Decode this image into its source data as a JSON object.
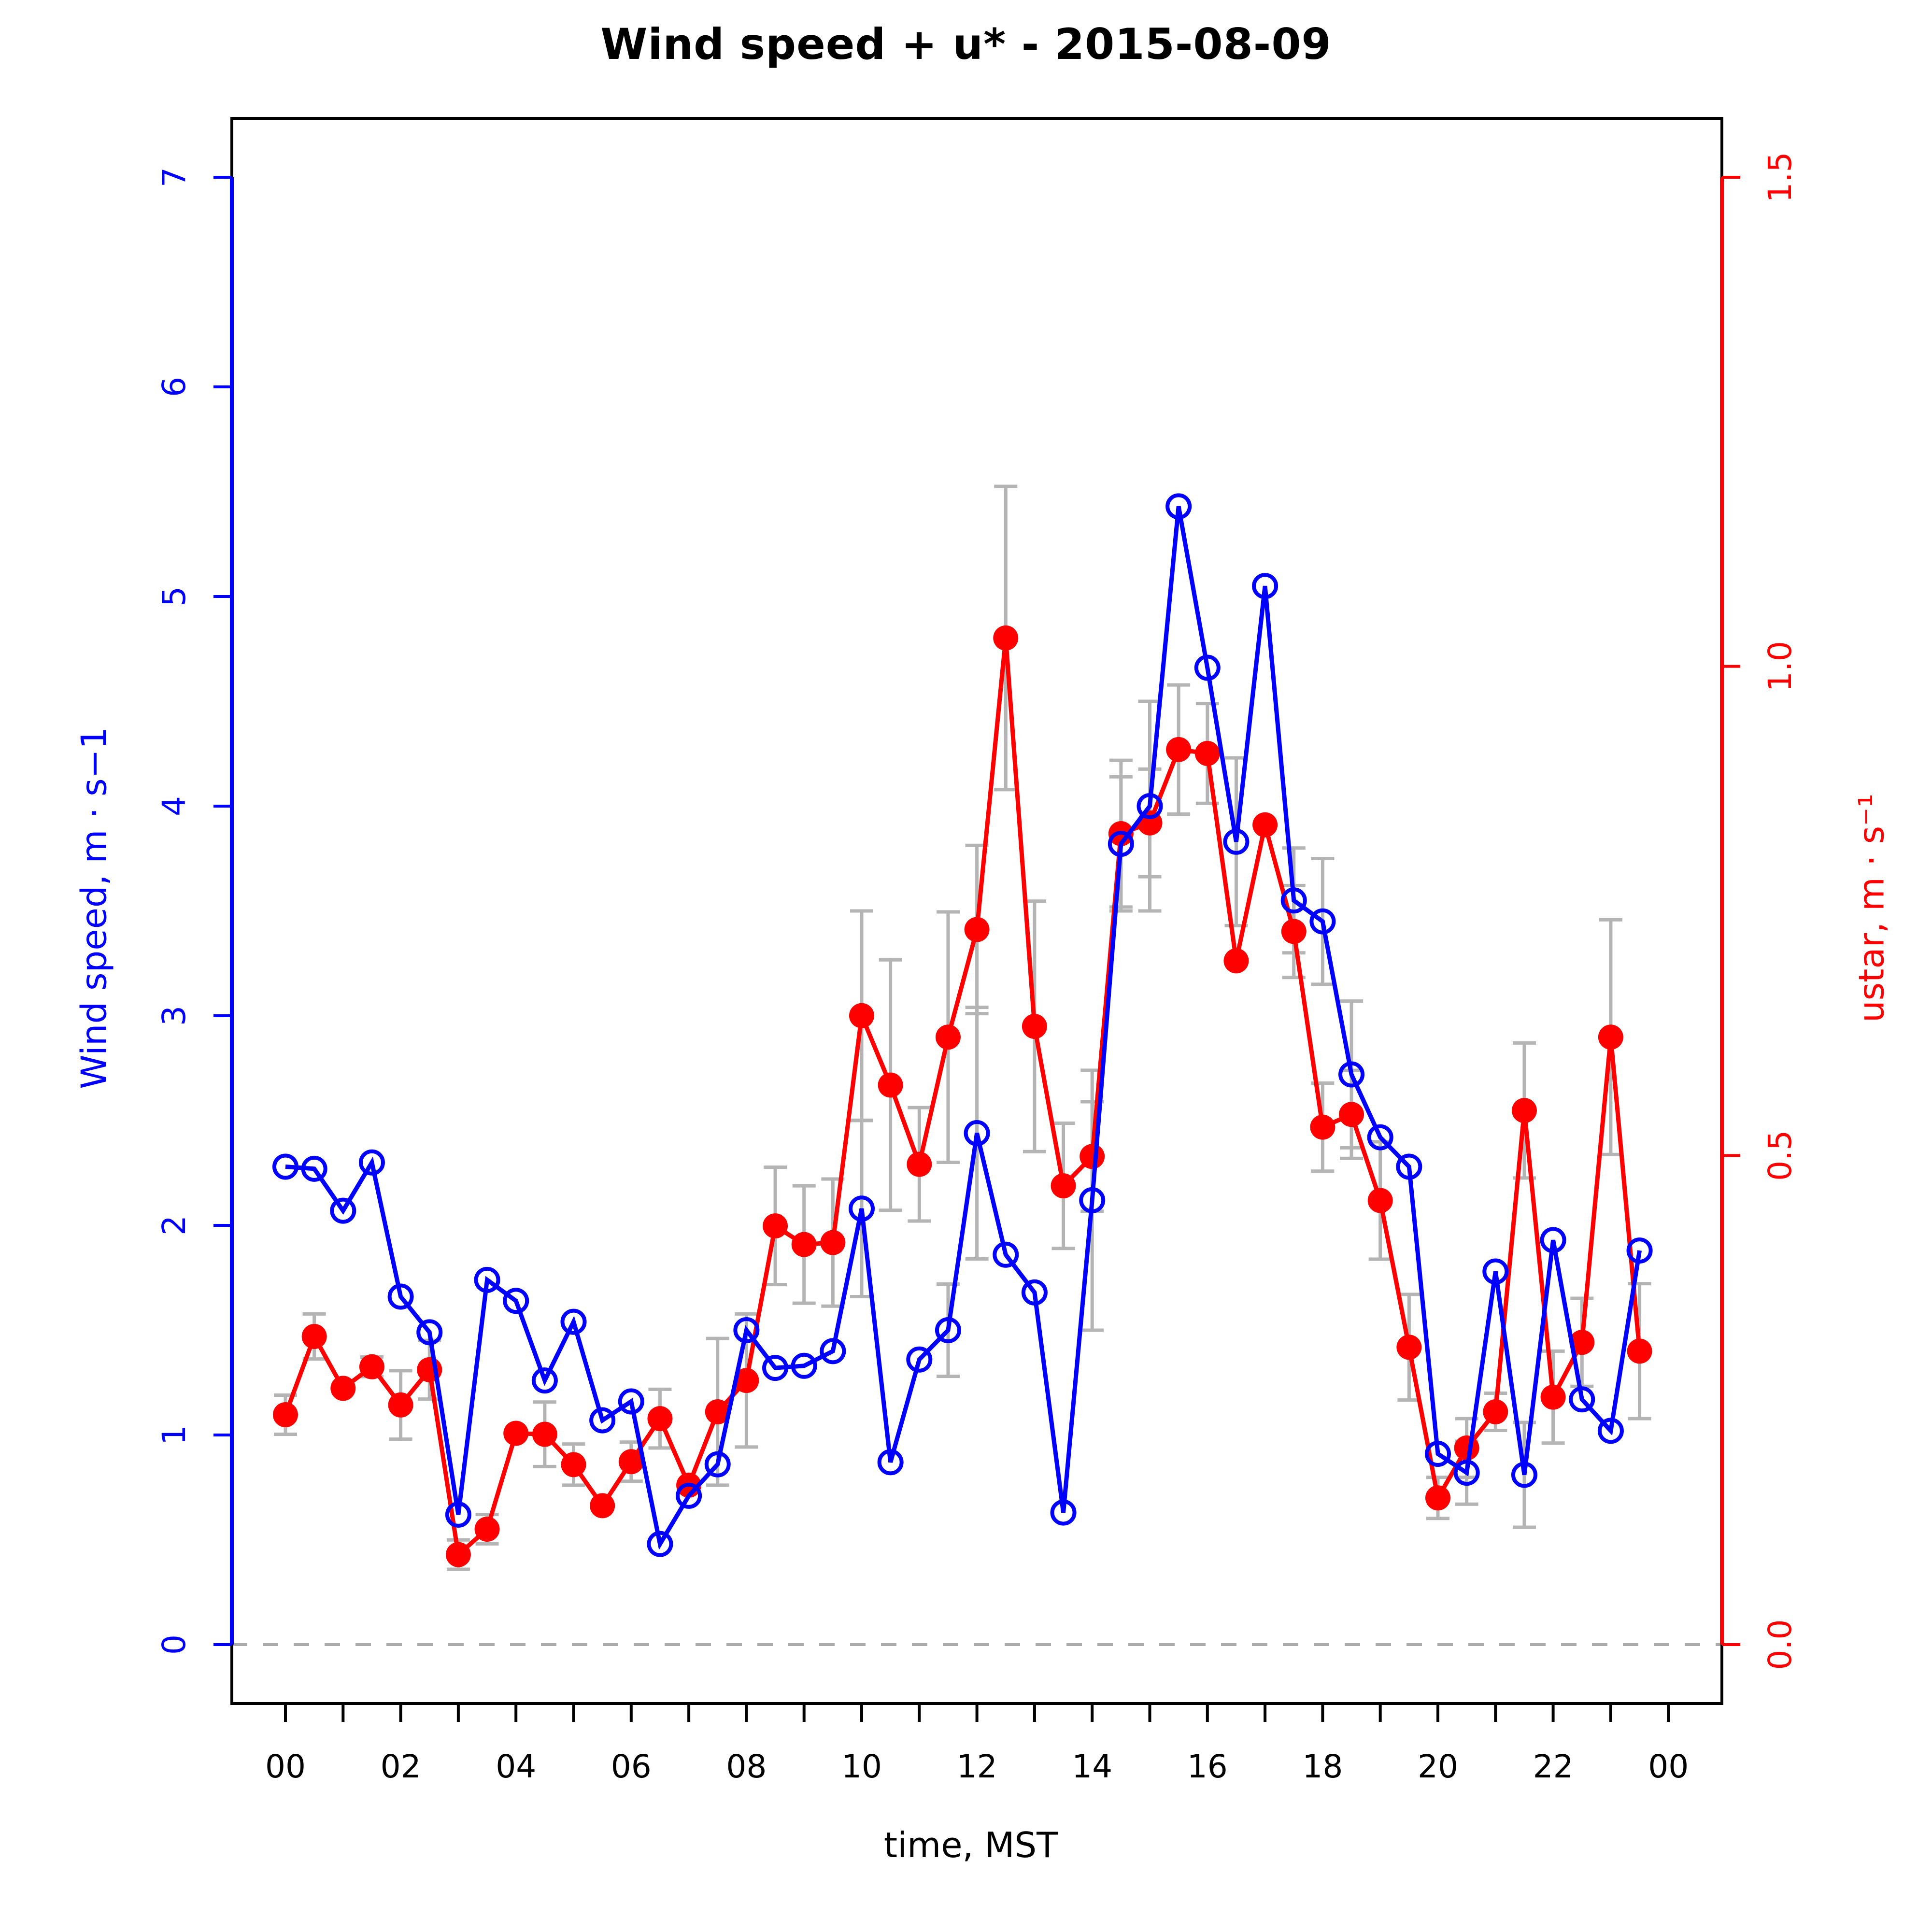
{
  "title": "Wind speed + u* -  2015-08-09",
  "chart_data": {
    "type": "line",
    "title": "Wind speed + u* -  2015-08-09",
    "xlabel": "time, MST",
    "x_axis": {
      "tick_hours_major": [
        0,
        2,
        4,
        6,
        8,
        10,
        12,
        14,
        16,
        18,
        20,
        22,
        24
      ],
      "tick_labels_major": [
        "00",
        "02",
        "04",
        "06",
        "08",
        "10",
        "12",
        "14",
        "16",
        "18",
        "20",
        "22",
        "00"
      ],
      "tick_hours_minor": [
        1,
        3,
        5,
        7,
        9,
        11,
        13,
        15,
        17,
        19,
        21,
        23
      ],
      "color": "#000000"
    },
    "left_axis": {
      "label": "Wind speed, m · s−1",
      "ticks": [
        0,
        1,
        2,
        3,
        4,
        5,
        6,
        7
      ],
      "ylim": [
        0,
        7
      ],
      "color": "#0000ff"
    },
    "right_axis": {
      "label": "ustar, m · s⁻¹",
      "ticks": [
        "0.0",
        "0.5",
        "1.0",
        "1.5"
      ],
      "tick_values": [
        0.0,
        0.5,
        1.0,
        1.5
      ],
      "ylim": [
        0,
        1.5
      ],
      "color": "#ff0000"
    },
    "zero_line": {
      "show": true,
      "value": 0,
      "color": "#aaaaaa",
      "style": "dashed"
    },
    "error_bar_color": "#b4b4b4",
    "grid": "off",
    "legend": "none",
    "x": [
      0,
      0.5,
      1,
      1.5,
      2,
      2.5,
      3,
      3.5,
      4,
      4.5,
      5,
      5.5,
      6,
      6.5,
      7,
      7.5,
      8,
      8.5,
      9,
      9.5,
      10,
      10.5,
      11,
      11.5,
      12,
      12.5,
      13,
      13.5,
      14,
      14.5,
      15,
      15.5,
      16,
      16.5,
      17,
      17.5,
      18,
      18.5,
      19,
      19.5,
      20,
      20.5,
      21,
      21.5,
      22,
      22.5,
      23,
      23.5
    ],
    "series": [
      {
        "name": "Wind speed",
        "axis": "left",
        "units": "m/s",
        "color": "#0000ff",
        "marker": "open-circle",
        "values": [
          2.28,
          2.27,
          2.07,
          2.3,
          1.66,
          1.49,
          0.62,
          1.74,
          1.64,
          1.26,
          1.54,
          1.07,
          1.16,
          0.48,
          0.71,
          0.86,
          1.5,
          1.32,
          1.33,
          1.4,
          2.08,
          0.87,
          1.36,
          1.5,
          2.44,
          1.86,
          1.68,
          0.63,
          2.12,
          3.82,
          4.0,
          5.43,
          4.66,
          3.83,
          5.05,
          3.55,
          3.45,
          2.72,
          2.42,
          2.28,
          0.91,
          0.82,
          1.78,
          0.81,
          1.93,
          1.17,
          1.02,
          1.88
        ],
        "err": [
          0,
          0,
          0,
          0,
          0,
          0,
          0,
          0,
          0,
          0,
          0,
          0,
          0,
          0,
          0,
          0,
          0,
          0,
          0,
          0,
          0.42,
          0,
          0,
          0.22,
          0.6,
          0,
          0,
          0,
          0.62,
          0.32,
          0.5,
          0,
          0,
          0.4,
          0,
          0.25,
          0.3,
          0.35,
          0,
          0,
          0,
          0.15,
          0,
          0.25,
          0,
          0,
          0,
          0
        ]
      },
      {
        "name": "ustar",
        "axis": "right",
        "units": "m/s",
        "color": "#ff0000",
        "marker": "filled-circle",
        "values": [
          0.235,
          0.315,
          0.262,
          0.284,
          0.245,
          0.281,
          0.092,
          0.118,
          0.216,
          0.215,
          0.184,
          0.142,
          0.187,
          0.231,
          0.163,
          0.238,
          0.27,
          0.428,
          0.409,
          0.411,
          0.643,
          0.572,
          0.491,
          0.621,
          0.731,
          1.029,
          0.632,
          0.469,
          0.499,
          0.829,
          0.84,
          0.915,
          0.911,
          0.699,
          0.838,
          0.729,
          0.529,
          0.542,
          0.454,
          0.304,
          0.15,
          0.201,
          0.238,
          0.546,
          0.253,
          0.309,
          0.621,
          0.3
        ],
        "err": [
          0.02,
          0.023,
          0,
          0.01,
          0.035,
          0.03,
          0.015,
          0.015,
          0,
          0.033,
          0.021,
          0,
          0.02,
          0.03,
          0,
          0.075,
          0.068,
          0.06,
          0.06,
          0.065,
          0.107,
          0.128,
          0.058,
          0.128,
          0.086,
          0.155,
          0.128,
          0.064,
          0.056,
          0.075,
          0.055,
          0.066,
          0.051,
          0,
          0,
          0.047,
          0.045,
          0.045,
          0.06,
          0.054,
          0.021,
          0.03,
          0.019,
          0.069,
          0.047,
          0.045,
          0.12,
          0.069
        ]
      }
    ]
  }
}
